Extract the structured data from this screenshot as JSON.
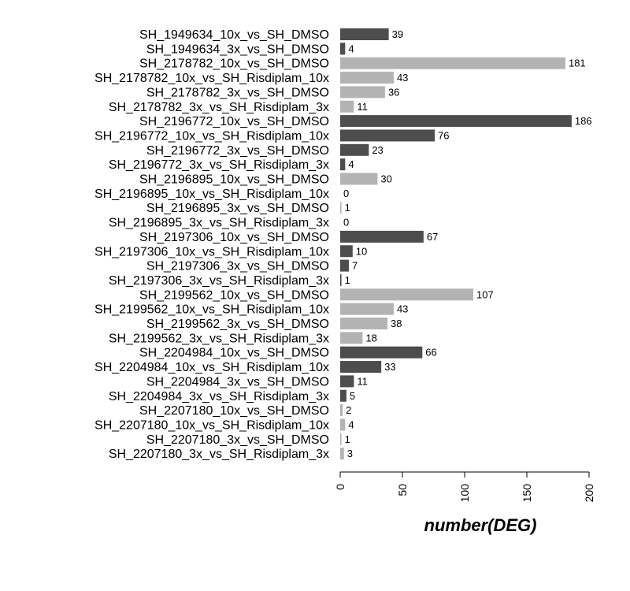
{
  "chart_data": {
    "type": "bar",
    "orientation": "horizontal",
    "title": "",
    "xlabel": "number(DEG)",
    "ylabel": "",
    "xlim": [
      0,
      200
    ],
    "xticks": [
      0,
      50,
      100,
      150,
      200
    ],
    "grid": false,
    "legend": "none",
    "colors": {
      "dark": "#4d4d4d",
      "light": "#b3b3b3"
    },
    "categories": [
      "SH_1949634_10x_vs_SH_DMSO",
      "SH_1949634_3x_vs_SH_DMSO",
      "SH_2178782_10x_vs_SH_DMSO",
      "SH_2178782_10x_vs_SH_Risdiplam_10x",
      "SH_2178782_3x_vs_SH_DMSO",
      "SH_2178782_3x_vs_SH_Risdiplam_3x",
      "SH_2196772_10x_vs_SH_DMSO",
      "SH_2196772_10x_vs_SH_Risdiplam_10x",
      "SH_2196772_3x_vs_SH_DMSO",
      "SH_2196772_3x_vs_SH_Risdiplam_3x",
      "SH_2196895_10x_vs_SH_DMSO",
      "SH_2196895_10x_vs_SH_Risdiplam_10x",
      "SH_2196895_3x_vs_SH_DMSO",
      "SH_2196895_3x_vs_SH_Risdiplam_3x",
      "SH_2197306_10x_vs_SH_DMSO",
      "SH_2197306_10x_vs_SH_Risdiplam_10x",
      "SH_2197306_3x_vs_SH_DMSO",
      "SH_2197306_3x_vs_SH_Risdiplam_3x",
      "SH_2199562_10x_vs_SH_DMSO",
      "SH_2199562_10x_vs_SH_Risdiplam_10x",
      "SH_2199562_3x_vs_SH_DMSO",
      "SH_2199562_3x_vs_SH_Risdiplam_3x",
      "SH_2204984_10x_vs_SH_DMSO",
      "SH_2204984_10x_vs_SH_Risdiplam_10x",
      "SH_2204984_3x_vs_SH_DMSO",
      "SH_2204984_3x_vs_SH_Risdiplam_3x",
      "SH_2207180_10x_vs_SH_DMSO",
      "SH_2207180_10x_vs_SH_Risdiplam_10x",
      "SH_2207180_3x_vs_SH_DMSO",
      "SH_2207180_3x_vs_SH_Risdiplam_3x"
    ],
    "values": [
      39,
      4,
      181,
      43,
      36,
      11,
      186,
      76,
      23,
      4,
      30,
      0,
      1,
      0,
      67,
      10,
      7,
      1,
      107,
      43,
      38,
      18,
      66,
      33,
      11,
      5,
      2,
      4,
      1,
      3
    ],
    "bar_colors": [
      "dark",
      "dark",
      "light",
      "light",
      "light",
      "light",
      "dark",
      "dark",
      "dark",
      "dark",
      "light",
      "light",
      "light",
      "light",
      "dark",
      "dark",
      "dark",
      "dark",
      "light",
      "light",
      "light",
      "light",
      "dark",
      "dark",
      "dark",
      "dark",
      "light",
      "light",
      "light",
      "light"
    ]
  }
}
